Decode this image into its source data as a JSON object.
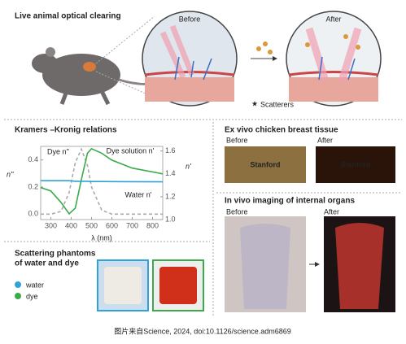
{
  "top": {
    "title": "Live animal optical clearing",
    "before": "Before",
    "after": "After",
    "legend": "Scatterers"
  },
  "chart_data": {
    "type": "line",
    "title": "Kramers –Kronig relations",
    "ylabel": "n''",
    "y2label": "n'",
    "xlabel": "λ (nm)",
    "x": [
      250,
      300,
      350,
      390,
      420,
      450,
      480,
      500,
      550,
      600,
      700,
      850
    ],
    "series": [
      {
        "name": "Dye n''",
        "color": "#aaaaaa",
        "dashed": true,
        "values": [
          0,
          0,
          0.02,
          0.16,
          0.38,
          0.48,
          0.36,
          0.2,
          0.03,
          0,
          0,
          0
        ]
      },
      {
        "name": "Dye solution n'",
        "color": "#3aaa4a",
        "axis": "y2",
        "values": [
          1.28,
          1.25,
          1.15,
          1.05,
          1.1,
          1.35,
          1.58,
          1.62,
          1.58,
          1.52,
          1.45,
          1.4
        ]
      },
      {
        "name": "Water n'",
        "color": "#2fa3d8",
        "axis": "y2",
        "values": [
          1.34,
          1.34,
          1.34,
          1.34,
          1.335,
          1.335,
          1.335,
          1.333,
          1.333,
          1.332,
          1.331,
          1.33
        ]
      }
    ],
    "xlim": [
      250,
      850
    ],
    "xticks": [
      300,
      400,
      500,
      600,
      700,
      800
    ],
    "ylim": [
      -0.04,
      0.5
    ],
    "yticks": [
      {
        "value": 0,
        "label": "0.0"
      },
      0.2,
      0.4
    ],
    "y2lim": [
      1.0,
      1.64
    ],
    "y2ticks": [
      {
        "value": 1,
        "label": "1.0"
      },
      1.2,
      1.4,
      1.6
    ]
  },
  "ex_vivo": {
    "title": "Ex vivo chicken breast tissue",
    "before": "Before",
    "after": "After",
    "before_text": "Stanford",
    "after_text": "Stanford"
  },
  "phantoms": {
    "title": [
      "Scattering phantoms",
      "of water and dye"
    ],
    "legend": [
      "water",
      "dye"
    ]
  },
  "in_vivo": {
    "title": "In vivo imaging of internal organs",
    "before": "Before",
    "after": "After"
  },
  "caption": "图片来自Science, 2024, doi:10.1126/science.adm6869"
}
